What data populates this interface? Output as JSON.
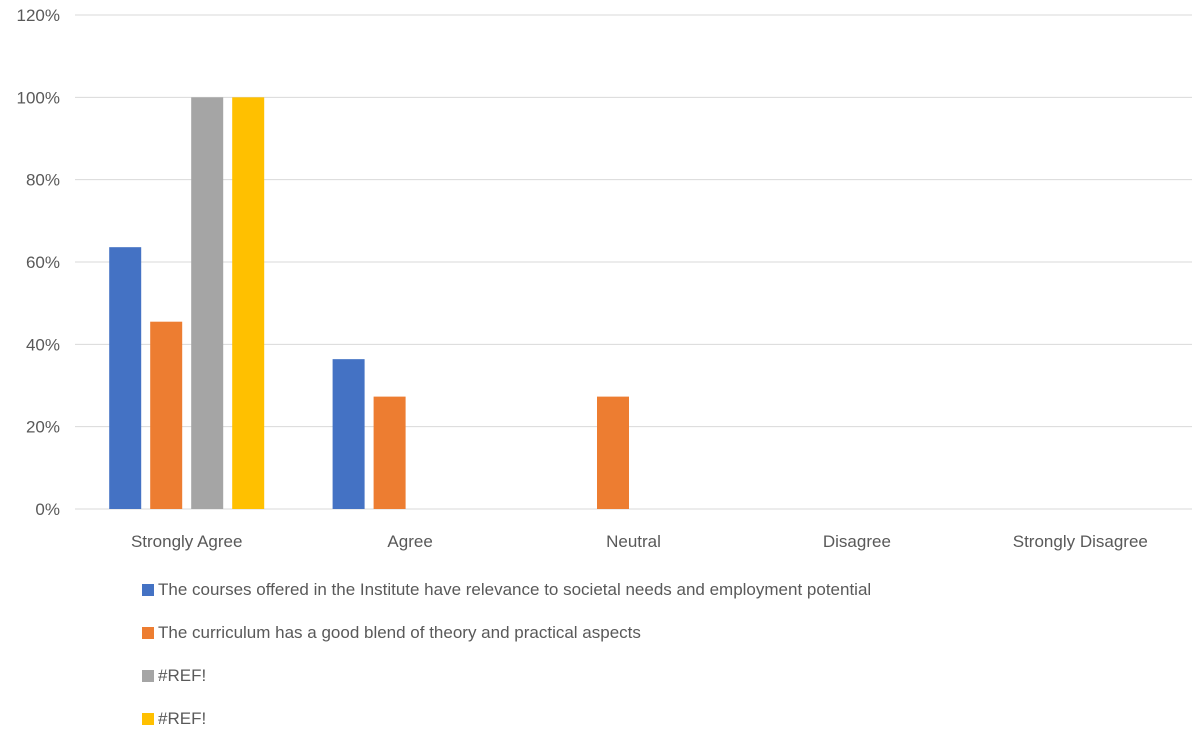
{
  "chart_data": {
    "type": "bar",
    "categories": [
      "Strongly Agree",
      "Agree",
      "Neutral",
      "Disagree",
      "Strongly Disagree"
    ],
    "series": [
      {
        "name": "The courses offered in the Institute have relevance to societal needs and employment potential",
        "color": "#4472C4",
        "values": [
          63.6,
          36.4,
          0,
          0,
          0
        ]
      },
      {
        "name": "The curriculum has a good blend of theory and practical aspects",
        "color": "#ED7D31",
        "values": [
          45.5,
          27.3,
          27.3,
          0,
          0
        ]
      },
      {
        "name": "#REF!",
        "color": "#A5A5A5",
        "values": [
          100,
          0,
          0,
          0,
          0
        ]
      },
      {
        "name": "#REF!",
        "color": "#FFC000",
        "values": [
          100,
          0,
          0,
          0,
          0
        ]
      }
    ],
    "y_ticks": [
      "0%",
      "20%",
      "40%",
      "60%",
      "80%",
      "100%",
      "120%"
    ],
    "ylim": [
      0,
      120
    ],
    "y_unit": "%",
    "grid": true,
    "legend_position": "bottom",
    "title": "",
    "xlabel": "",
    "ylabel": ""
  }
}
